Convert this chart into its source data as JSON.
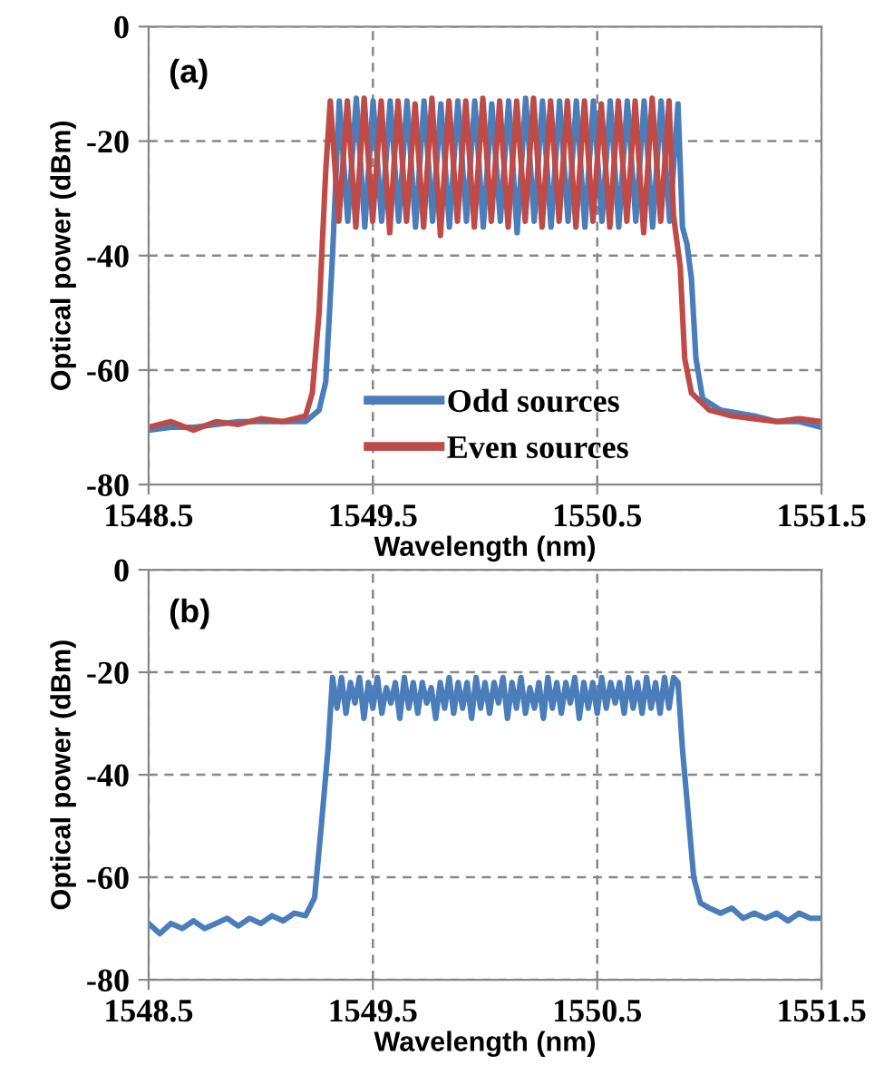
{
  "chart_data": [
    {
      "type": "line",
      "xlabel": "Wavelength (nm)",
      "ylabel": "Optical power (dBm)",
      "annotations": [
        "(a)"
      ],
      "xlim": [
        1548.5,
        1551.5
      ],
      "xticks": [
        1548.5,
        1549.5,
        1550.5,
        1551.5
      ],
      "ylim": [
        -80,
        0
      ],
      "yticks": [
        -80,
        -60,
        -40,
        -20,
        0
      ],
      "grid": true,
      "legend": "bottom",
      "line_style": "solid",
      "series": [
        {
          "name": "Odd sources",
          "color": "#4a7ebb",
          "x": [
            1548.5,
            1548.6,
            1548.7,
            1548.8,
            1548.9,
            1549.0,
            1549.1,
            1549.2,
            1549.26,
            1549.29,
            1549.32,
            1549.35,
            1549.388,
            1549.426,
            1549.464,
            1549.501,
            1549.539,
            1549.577,
            1549.615,
            1549.652,
            1549.69,
            1549.728,
            1549.766,
            1549.803,
            1549.841,
            1549.879,
            1549.917,
            1549.954,
            1549.992,
            1550.03,
            1550.068,
            1550.105,
            1550.143,
            1550.181,
            1550.219,
            1550.256,
            1550.294,
            1550.332,
            1550.37,
            1550.407,
            1550.445,
            1550.483,
            1550.521,
            1550.558,
            1550.596,
            1550.634,
            1550.672,
            1550.709,
            1550.747,
            1550.785,
            1550.823,
            1550.86,
            1550.88,
            1550.9,
            1550.92,
            1550.94,
            1550.97,
            1551.05,
            1551.2,
            1551.3,
            1551.4,
            1551.5
          ],
          "values": [
            -70.5,
            -70,
            -70,
            -69.5,
            -69,
            -69,
            -69,
            -69,
            -67,
            -62,
            -40,
            -13,
            -34,
            -12.5,
            -35,
            -13,
            -34,
            -13,
            -34,
            -13,
            -35,
            -13,
            -34,
            -13.5,
            -35,
            -13,
            -34,
            -13,
            -35,
            -13.5,
            -34,
            -13,
            -36,
            -12.5,
            -34,
            -13,
            -35,
            -13,
            -34,
            -13,
            -35,
            -13,
            -34,
            -13,
            -35,
            -13,
            -34,
            -13,
            -35,
            -13,
            -34,
            -13.5,
            -35,
            -38,
            -44,
            -58,
            -65,
            -67,
            -68,
            -69,
            -69,
            -70
          ]
        },
        {
          "name": "Even sources",
          "color": "#be4b48",
          "x": [
            1548.5,
            1548.6,
            1548.7,
            1548.8,
            1548.9,
            1549.0,
            1549.1,
            1549.2,
            1549.23,
            1549.26,
            1549.29,
            1549.31,
            1549.348,
            1549.386,
            1549.424,
            1549.461,
            1549.499,
            1549.537,
            1549.575,
            1549.612,
            1549.65,
            1549.688,
            1549.726,
            1549.763,
            1549.801,
            1549.839,
            1549.877,
            1549.914,
            1549.952,
            1549.99,
            1550.028,
            1550.065,
            1550.103,
            1550.141,
            1550.179,
            1550.216,
            1550.254,
            1550.292,
            1550.33,
            1550.367,
            1550.405,
            1550.443,
            1550.481,
            1550.518,
            1550.556,
            1550.594,
            1550.632,
            1550.669,
            1550.707,
            1550.745,
            1550.783,
            1550.82,
            1550.84,
            1550.87,
            1550.89,
            1550.92,
            1551.0,
            1551.1,
            1551.2,
            1551.3,
            1551.4,
            1551.5
          ],
          "values": [
            -70,
            -69,
            -70.5,
            -69,
            -69.5,
            -68.5,
            -69,
            -68,
            -64,
            -50,
            -25,
            -13,
            -34,
            -13,
            -35,
            -12.5,
            -34,
            -13,
            -36,
            -13,
            -34,
            -13.5,
            -35,
            -12.5,
            -36.5,
            -13,
            -34,
            -13,
            -35,
            -12.5,
            -34,
            -13,
            -35,
            -13,
            -34,
            -12.5,
            -35,
            -13,
            -34,
            -13,
            -35,
            -13,
            -34,
            -13.5,
            -35,
            -13,
            -34,
            -13,
            -36,
            -12.5,
            -34,
            -13,
            -33,
            -42,
            -58,
            -64,
            -67,
            -68,
            -68.5,
            -69,
            -68.5,
            -69
          ]
        }
      ]
    },
    {
      "type": "line",
      "xlabel": "Wavelength (nm)",
      "ylabel": "Optical power (dBm)",
      "annotations": [
        "(b)"
      ],
      "xlim": [
        1548.5,
        1551.5
      ],
      "xticks": [
        1548.5,
        1549.5,
        1550.5,
        1551.5
      ],
      "ylim": [
        -80,
        0
      ],
      "yticks": [
        -80,
        -60,
        -40,
        -20,
        0
      ],
      "grid": true,
      "line_style": "solid",
      "series": [
        {
          "color": "#4a7ebb",
          "x": [
            1548.5,
            1548.55,
            1548.6,
            1548.65,
            1548.7,
            1548.75,
            1548.8,
            1548.85,
            1548.9,
            1548.95,
            1549.0,
            1549.05,
            1549.1,
            1549.15,
            1549.2,
            1549.24,
            1549.27,
            1549.3,
            1549.32,
            1549.34,
            1549.36,
            1549.38,
            1549.4,
            1549.42,
            1549.44,
            1549.46,
            1549.48,
            1549.5,
            1549.52,
            1549.54,
            1549.56,
            1549.58,
            1549.6,
            1549.62,
            1549.64,
            1549.66,
            1549.68,
            1549.7,
            1549.72,
            1549.74,
            1549.76,
            1549.78,
            1549.8,
            1549.82,
            1549.84,
            1549.86,
            1549.88,
            1549.9,
            1549.92,
            1549.94,
            1549.96,
            1549.98,
            1550.0,
            1550.02,
            1550.04,
            1550.06,
            1550.08,
            1550.1,
            1550.12,
            1550.14,
            1550.16,
            1550.18,
            1550.2,
            1550.22,
            1550.24,
            1550.26,
            1550.28,
            1550.3,
            1550.32,
            1550.34,
            1550.36,
            1550.38,
            1550.4,
            1550.42,
            1550.44,
            1550.46,
            1550.48,
            1550.5,
            1550.52,
            1550.54,
            1550.56,
            1550.58,
            1550.6,
            1550.62,
            1550.64,
            1550.66,
            1550.68,
            1550.7,
            1550.72,
            1550.74,
            1550.76,
            1550.78,
            1550.8,
            1550.82,
            1550.84,
            1550.86,
            1550.88,
            1550.9,
            1550.93,
            1550.96,
            1551.0,
            1551.05,
            1551.1,
            1551.15,
            1551.2,
            1551.25,
            1551.3,
            1551.35,
            1551.4,
            1551.45,
            1551.5
          ],
          "values": [
            -69,
            -71,
            -69,
            -70,
            -68.5,
            -70,
            -69,
            -68,
            -69.5,
            -68,
            -69,
            -67.5,
            -68.5,
            -67,
            -67.5,
            -64,
            -50,
            -35,
            -21,
            -27,
            -21,
            -28,
            -22,
            -26,
            -21,
            -29,
            -22,
            -27,
            -21,
            -28,
            -23,
            -26,
            -22,
            -29,
            -21,
            -27,
            -22,
            -28,
            -22,
            -26,
            -23,
            -29,
            -22,
            -27,
            -21,
            -28,
            -22,
            -27,
            -22,
            -29,
            -21,
            -27,
            -22,
            -28,
            -22,
            -26,
            -21,
            -29,
            -22,
            -27,
            -21,
            -28,
            -23,
            -27,
            -22,
            -29,
            -21,
            -27,
            -22,
            -28,
            -22,
            -26,
            -21,
            -29,
            -22,
            -27,
            -22,
            -28,
            -21,
            -27,
            -22,
            -26,
            -22,
            -28,
            -21,
            -27,
            -22,
            -28,
            -21,
            -27,
            -22,
            -28,
            -21,
            -27,
            -21,
            -22,
            -35,
            -45,
            -60,
            -65,
            -66,
            -67,
            -66,
            -68,
            -67,
            -68,
            -67,
            -68.5,
            -67,
            -68,
            -68
          ]
        }
      ]
    }
  ]
}
